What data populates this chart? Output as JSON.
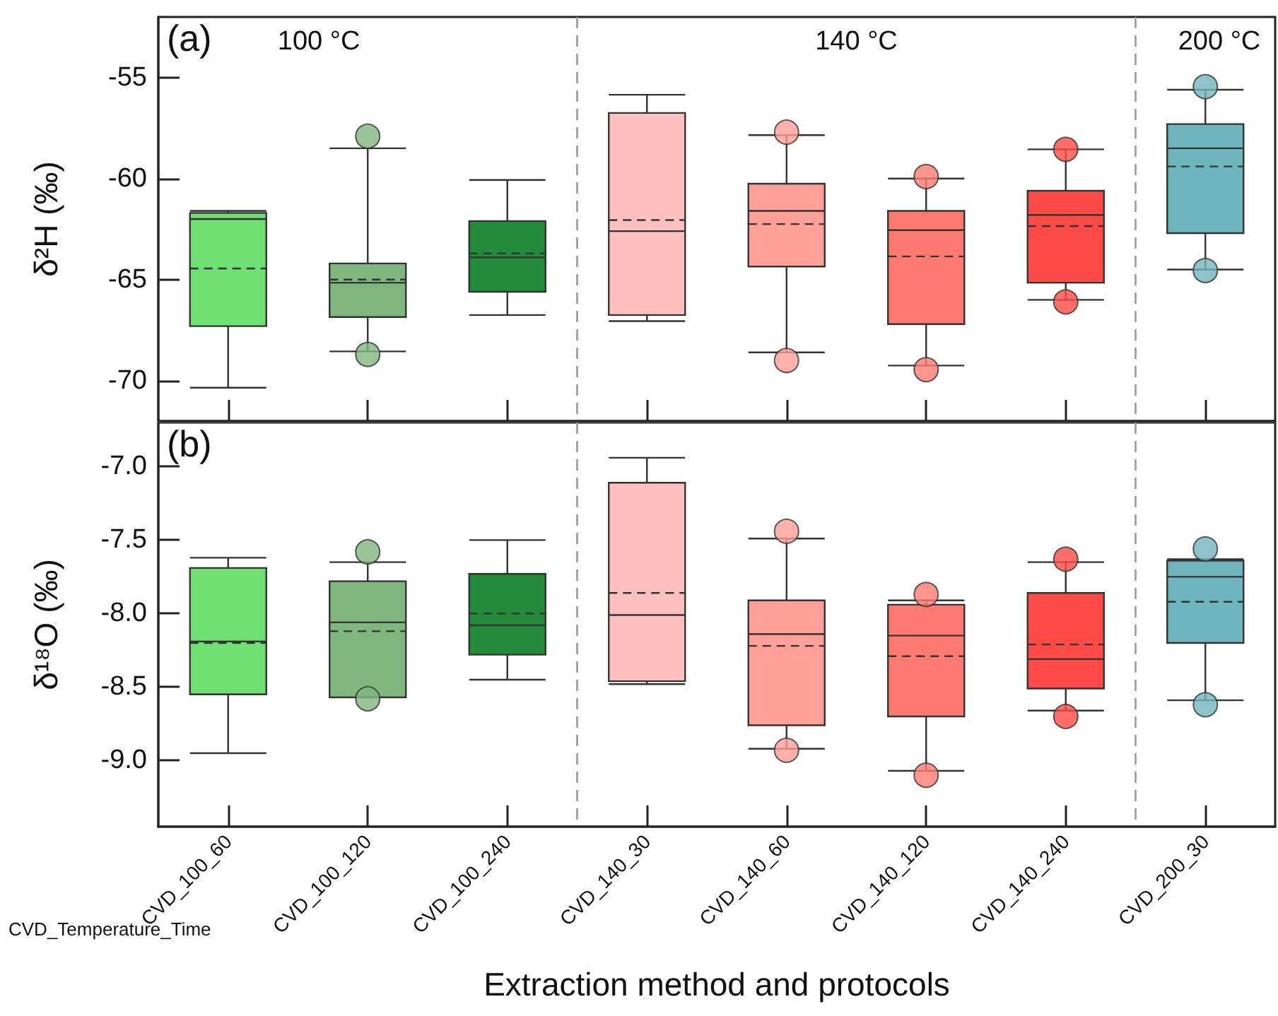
{
  "chart_data": [
    {
      "type": "box",
      "categories": [
        null,
        null,
        null,
        null,
        null,
        null,
        null,
        null
      ],
      "ylabel": "δ²H (‰)",
      "ylim": [
        -72,
        -52
      ],
      "yticks": [
        -70,
        -65,
        -60,
        -55
      ],
      "tick_labels": "y",
      "colors": [
        "#6ddf73",
        "#7fb77e",
        "#238b3a",
        "#ffc0c0",
        "#ff9f97",
        "#ff7b72",
        "#ff4b45",
        "#6fb5bd"
      ],
      "boxes": [
        {
          "low": -70.35,
          "q1": -67.3,
          "median": -62.0,
          "q3": -61.7,
          "high": -61.6,
          "mean": -64.45
        },
        {
          "low": -68.55,
          "q1": -66.85,
          "median": -65.15,
          "q3": -64.2,
          "high": -58.5,
          "mean": -65.0,
          "outliers": [
            -57.9,
            -68.7
          ]
        },
        {
          "low": -66.75,
          "q1": -65.6,
          "median": -63.9,
          "q3": -62.1,
          "high": -60.07,
          "mean": -63.7
        },
        {
          "low": -67.05,
          "q1": -66.75,
          "median": -62.6,
          "q3": -56.75,
          "high": -55.85,
          "mean": -62.05
        },
        {
          "low": -68.6,
          "q1": -64.35,
          "median": -61.6,
          "q3": -60.25,
          "high": -57.85,
          "mean": -62.25,
          "outliers": [
            -57.7,
            -69.0
          ]
        },
        {
          "low": -69.25,
          "q1": -67.2,
          "median": -62.55,
          "q3": -61.6,
          "high": -60.0,
          "mean": -63.85,
          "outliers": [
            -59.9,
            -69.45
          ]
        },
        {
          "low": -66.0,
          "q1": -65.15,
          "median": -61.8,
          "q3": -60.6,
          "high": -58.55,
          "mean": -62.35,
          "outliers": [
            -58.55,
            -66.1
          ]
        },
        {
          "low": -64.5,
          "q1": -62.7,
          "median": -58.5,
          "q3": -57.3,
          "high": -55.6,
          "mean": -59.4,
          "outliers": [
            -55.45,
            -64.55
          ]
        }
      ],
      "annotations": [
        "(a)",
        "100 °C",
        "140 °C",
        "200 °C"
      ]
    },
    {
      "type": "box",
      "categories": [
        "CVD_100_60",
        "CVD_100_120",
        "CVD_100_240",
        "CVD_140_30",
        "CVD_140_60",
        "CVD_140_120",
        "CVD_140_240",
        "CVD_200_30"
      ],
      "xlabel": "Extraction method and protocols",
      "ylabel": "δ¹⁸O (‰)",
      "ylim": [
        -9.45,
        -6.7
      ],
      "yticks": [
        {
          "value": -9,
          "label": "-9.0"
        },
        -8.5,
        {
          "value": -8,
          "label": "-8.0"
        },
        -7.5,
        {
          "value": -7,
          "label": "-7.0"
        }
      ],
      "colors": [
        "#6ddf73",
        "#7fb77e",
        "#238b3a",
        "#ffc0c0",
        "#ff9f97",
        "#ff7b72",
        "#ff4b45",
        "#6fb5bd"
      ],
      "boxes": [
        {
          "low": -8.95,
          "q1": -8.55,
          "median": -8.19,
          "q3": -7.69,
          "high": -7.62,
          "mean": -8.2
        },
        {
          "low": -8.57,
          "q1": -8.57,
          "median": -8.06,
          "q3": -7.78,
          "high": -7.65,
          "mean": -8.12,
          "outliers": [
            -7.58,
            -8.58
          ]
        },
        {
          "low": -8.45,
          "q1": -8.28,
          "median": -8.08,
          "q3": -7.73,
          "high": -7.5,
          "mean": -8.0
        },
        {
          "low": -8.48,
          "q1": -8.46,
          "median": -8.01,
          "q3": -7.11,
          "high": -6.94,
          "mean": -7.86
        },
        {
          "low": -8.92,
          "q1": -8.76,
          "median": -8.14,
          "q3": -7.91,
          "high": -7.49,
          "mean": -8.22,
          "outliers": [
            -7.44,
            -8.93
          ]
        },
        {
          "low": -9.07,
          "q1": -8.7,
          "median": -8.15,
          "q3": -7.94,
          "high": -7.91,
          "mean": -8.29,
          "outliers": [
            -7.87,
            -9.1
          ]
        },
        {
          "low": -8.66,
          "q1": -8.51,
          "median": -8.31,
          "q3": -7.86,
          "high": -7.65,
          "mean": -8.21,
          "outliers": [
            -7.63,
            -8.7
          ]
        },
        {
          "low": -8.59,
          "q1": -8.2,
          "median": -7.75,
          "q3": -7.64,
          "high": -7.63,
          "mean": -7.92,
          "outliers": [
            -7.56,
            -8.62
          ]
        }
      ],
      "annotations": [
        "(b)",
        "CVD_Temperature_Time"
      ]
    }
  ]
}
